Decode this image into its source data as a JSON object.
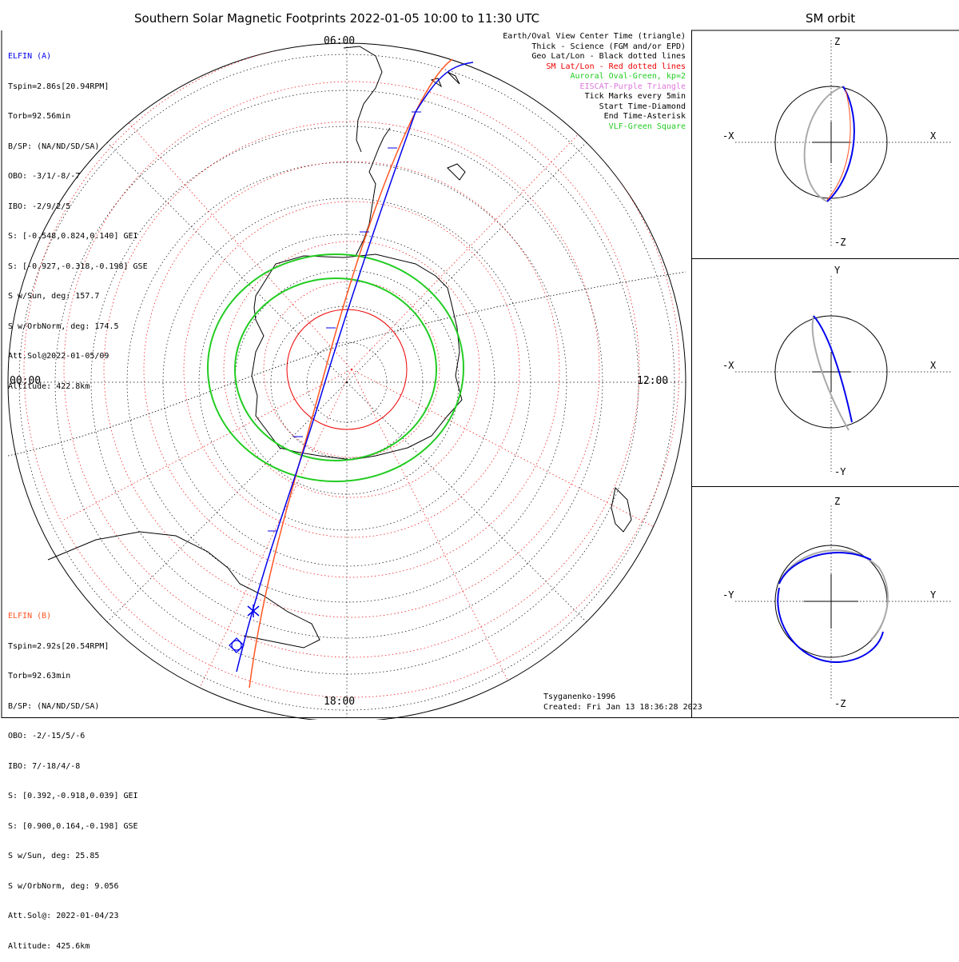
{
  "main_title": "Southern Solar Magnetic Footprints 2022-01-05 10:00 to 11:30 UTC",
  "orbit_title": "SM orbit",
  "map": {
    "hour_labels": {
      "top": "06:00",
      "left": "00:00",
      "right": "12:00",
      "bottom": "18:00"
    }
  },
  "elfin_a": {
    "name": "ELFIN (A)",
    "color": "#0000ee",
    "lines": [
      "Tspin=2.86s[20.94RPM]",
      "Torb=92.56min",
      "B/SP: (NA/ND/SD/SA)",
      "OBO: -3/1/-8/-7",
      "IBO: -2/9/2/5",
      "S: [-0.548,0.824,0.140] GEI",
      "S: [-0.927,-0.318,-0.198] GSE",
      "S w/Sun, deg: 157.7",
      "S w/OrbNorm, deg: 174.5",
      "Att.Sol@2022-01-05/09",
      "Altitude: 422.8km"
    ]
  },
  "elfin_b": {
    "name": "ELFIN (B)",
    "color": "#ff5522",
    "lines": [
      "Tspin=2.92s[20.54RPM]",
      "Torb=92.63min",
      "B/SP: (NA/ND/SD/SA)",
      "OBO: -2/-15/5/-6",
      "IBO: 7/-18/4/-8",
      "S: [0.392,-0.918,0.039] GEI",
      "S: [0.900,0.164,-0.198] GSE",
      "S w/Sun, deg: 25.85",
      "S w/OrbNorm, deg: 9.056",
      "Att.Sol@: 2022-01-04/23",
      "Altitude: 425.6km"
    ]
  },
  "legend": [
    {
      "text": "Earth/Oval View Center Time (triangle)",
      "color": "#000000"
    },
    {
      "text": "Thick - Science (FGM and/or EPD)",
      "color": "#000000"
    },
    {
      "text": "Geo Lat/Lon - Black dotted lines",
      "color": "#000000"
    },
    {
      "text": "SM Lat/Lon - Red dotted lines",
      "color": "#ee0000"
    },
    {
      "text": "Auroral Oval-Green, kp=2",
      "color": "#22cc22"
    },
    {
      "text": "EISCAT-Purple Triangle",
      "color": "#dd77dd"
    },
    {
      "text": "Tick Marks every 5min",
      "color": "#000000"
    },
    {
      "text": "Start Time-Diamond",
      "color": "#000000"
    },
    {
      "text": "End Time-Asterisk",
      "color": "#000000"
    },
    {
      "text": "VLF-Green Square",
      "color": "#22cc22"
    }
  ],
  "credits": {
    "model": "Tsyganenko-1996",
    "created": "Created: Fri Jan 13 18:36:28 2023"
  },
  "orbit_panels": [
    {
      "top": "Z",
      "bottom": "-Z",
      "left": "-X",
      "right": "X"
    },
    {
      "top": "Y",
      "bottom": "-Y",
      "left": "-X",
      "right": "X"
    },
    {
      "top": "Z",
      "bottom": "-Z",
      "left": "-Y",
      "right": "Y"
    }
  ],
  "colors": {
    "oval": "#22cc22",
    "sm_grid": "#ee0000",
    "elfin_a": "#0000ee",
    "elfin_b": "#ff5522",
    "orbit_gray": "#aaaaaa"
  }
}
